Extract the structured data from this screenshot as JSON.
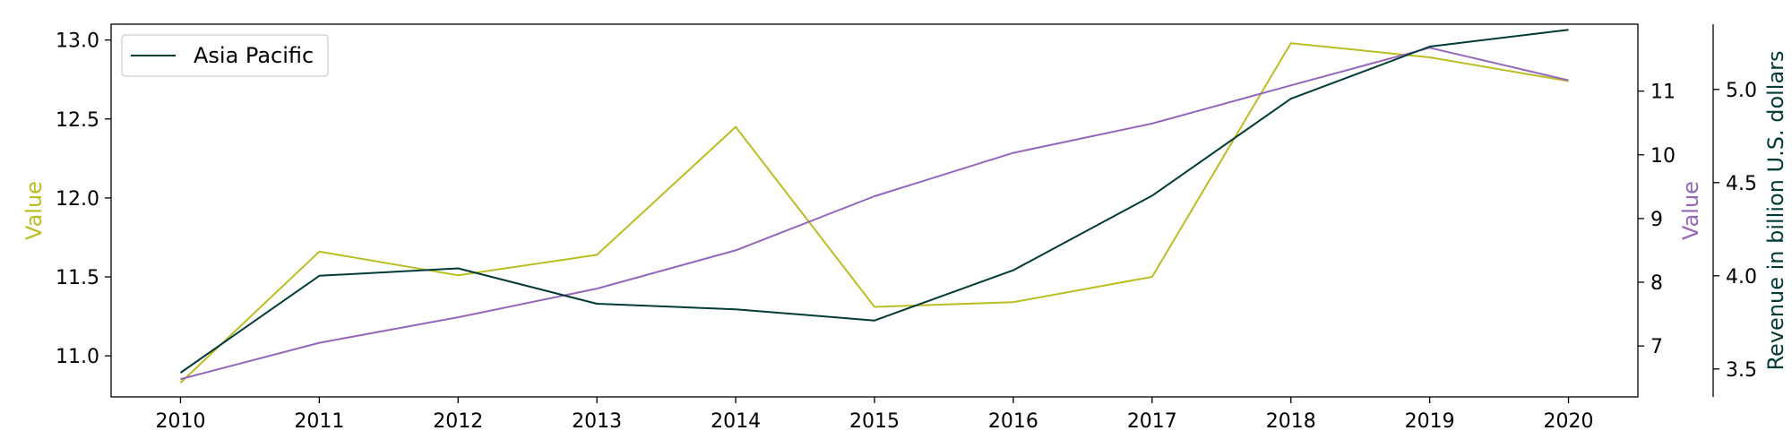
{
  "chart_data": {
    "type": "line",
    "x": [
      2010,
      2011,
      2012,
      2013,
      2014,
      2015,
      2016,
      2017,
      2018,
      2019,
      2020
    ],
    "xlim": [
      2009.5,
      2020.5
    ],
    "x_ticks": [
      "2010",
      "2011",
      "2012",
      "2013",
      "2014",
      "2015",
      "2016",
      "2017",
      "2018",
      "2019",
      "2020"
    ],
    "grid": false,
    "legend": {
      "position": "top-left",
      "entries": [
        "Asia Pacific"
      ]
    },
    "axes": {
      "left": {
        "label": "Value",
        "color": "#bcbd22",
        "ylim": [
          10.74,
          13.1
        ],
        "ticks": [
          "11.0",
          "11.5",
          "12.0",
          "12.5",
          "13.0"
        ],
        "tick_values": [
          11.0,
          11.5,
          12.0,
          12.5,
          13.0
        ]
      },
      "right": {
        "label": "Value",
        "color": "#9467bd",
        "ylim": [
          6.2,
          12.05
        ],
        "ticks": [
          "7",
          "8",
          "9",
          "10",
          "11"
        ],
        "tick_values": [
          7,
          8,
          9,
          10,
          11
        ]
      },
      "right_outer": {
        "label": "Revenue in billion U.S. dollars",
        "color": "#003b36",
        "ylim": [
          3.35,
          5.35
        ],
        "ticks": [
          "3.5",
          "4.0",
          "4.5",
          "5.0"
        ],
        "tick_values": [
          3.5,
          4.0,
          4.5,
          5.0
        ]
      }
    },
    "series": [
      {
        "axis": "left",
        "color": "#bcbd22",
        "values": [
          10.83,
          11.66,
          11.51,
          11.64,
          12.45,
          11.31,
          11.34,
          11.5,
          12.98,
          12.89,
          12.74
        ]
      },
      {
        "axis": "right",
        "color": "#9467bd",
        "values": [
          6.48,
          7.05,
          7.45,
          7.9,
          8.5,
          9.35,
          10.03,
          10.49,
          11.09,
          11.68,
          11.17
        ]
      },
      {
        "name": "Asia Pacific",
        "axis": "right_outer",
        "color": "#003b36",
        "values": [
          3.48,
          4.0,
          4.04,
          3.85,
          3.82,
          3.76,
          4.03,
          4.43,
          4.95,
          5.23,
          5.32
        ]
      }
    ]
  }
}
